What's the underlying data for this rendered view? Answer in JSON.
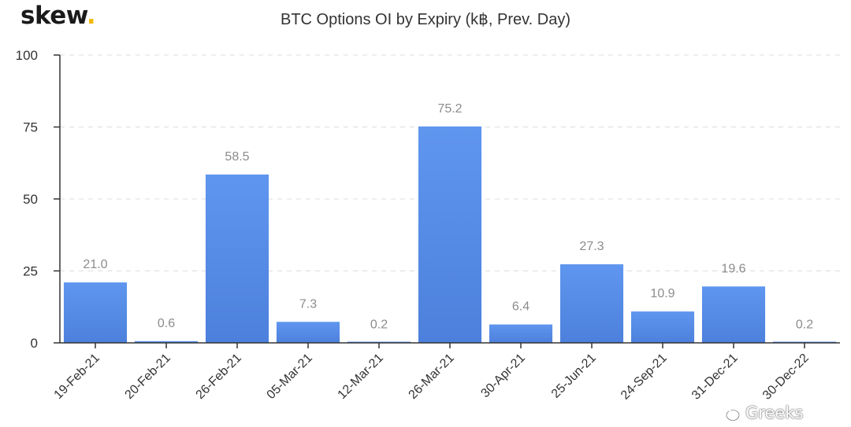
{
  "brand": {
    "name": "skew",
    "dot": ".",
    "accent_color": "#f2b705"
  },
  "watermark": {
    "text": "Greeks",
    "icon": "wechat-icon"
  },
  "colors": {
    "bar_top": "#5f96ef",
    "bar_bottom": "#4c80dc",
    "grid": "#dddddd",
    "axis": "#333333",
    "data_label": "#8c8c8c"
  },
  "chart_data": {
    "type": "bar",
    "title": "BTC Options OI by Expiry (k฿, Prev. Day)",
    "xlabel": "",
    "ylabel": "",
    "categories": [
      "19-Feb-21",
      "20-Feb-21",
      "26-Feb-21",
      "05-Mar-21",
      "12-Mar-21",
      "26-Mar-21",
      "30-Apr-21",
      "25-Jun-21",
      "24-Sep-21",
      "31-Dec-21",
      "30-Dec-22"
    ],
    "values": [
      21.0,
      0.6,
      58.5,
      7.3,
      0.2,
      75.2,
      6.4,
      27.3,
      10.9,
      19.6,
      0.2
    ],
    "data_labels": [
      "21.0",
      "0.6",
      "58.5",
      "7.3",
      "0.2",
      "75.2",
      "6.4",
      "27.3",
      "10.9",
      "19.6",
      "0.2"
    ],
    "ylim": [
      0,
      100
    ],
    "yticks": [
      0,
      25,
      50,
      75,
      100
    ],
    "ytick_labels": [
      "0",
      "25",
      "50",
      "75",
      "100"
    ],
    "grid": true,
    "legend": "none"
  }
}
